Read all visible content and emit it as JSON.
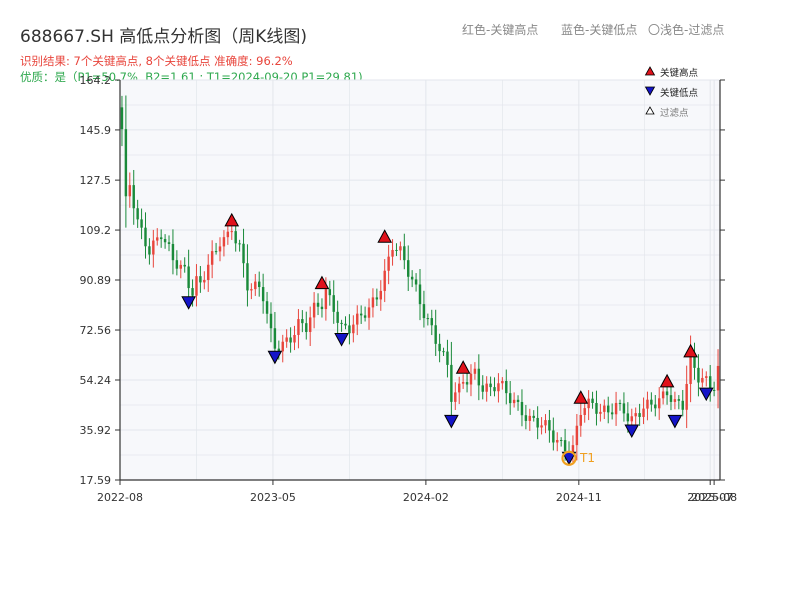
{
  "header": {
    "title": "688667.SH 高低点分析图（周K线图)",
    "legend_red": "红色-关键高点",
    "legend_blue": "蓝色-关键低点",
    "legend_light": "〇浅色-过滤点",
    "result_line": "识别结果: 7个关键高点, 8个关键低点  准确度: 96.2%",
    "quality_line": "优质：是（P1=50.7%, B2=1.61 ; T1=2024-09-20 P1=29.81)"
  },
  "colors": {
    "up": "#e8453c",
    "down": "#1a8a3a",
    "high_marker": "#e0121b",
    "low_marker": "#1414c8",
    "t1_ring": "#f0a020",
    "plot_bg": "#f7f8fb",
    "grid": "#e3e6ec"
  },
  "chart_data": {
    "type": "candlestick",
    "title": "688667.SH 高低点分析图（周K线图)",
    "x_tick_labels": [
      "2022-08",
      "2023-05",
      "2024-02",
      "2024-11",
      "2025-07",
      "2025-08"
    ],
    "x_tick_positions": [
      0,
      39,
      78,
      117,
      150.5,
      151.5
    ],
    "x_count": 153,
    "y_ticks": [
      17.59,
      35.92,
      54.24,
      72.56,
      90.89,
      109.2,
      127.5,
      145.9,
      164.2
    ],
    "ylim": [
      17.59,
      164.2
    ],
    "grid": true,
    "anchors": [
      [
        0,
        145
      ],
      [
        1,
        118
      ],
      [
        2,
        125
      ],
      [
        4,
        112
      ],
      [
        7,
        103
      ],
      [
        10,
        108
      ],
      [
        13,
        97
      ],
      [
        16,
        94
      ],
      [
        17,
        90
      ],
      [
        18,
        88
      ],
      [
        19,
        92
      ],
      [
        20,
        90
      ],
      [
        22,
        97
      ],
      [
        24,
        100
      ],
      [
        25,
        104
      ],
      [
        27,
        106
      ],
      [
        28,
        110
      ],
      [
        30,
        104
      ],
      [
        32,
        90
      ],
      [
        35,
        87
      ],
      [
        36,
        84
      ],
      [
        38,
        70
      ],
      [
        39,
        66
      ],
      [
        41,
        68
      ],
      [
        43,
        71
      ],
      [
        45,
        75
      ],
      [
        47,
        73
      ],
      [
        49,
        79
      ],
      [
        51,
        82
      ],
      [
        52,
        87
      ],
      [
        54,
        82
      ],
      [
        55,
        78
      ],
      [
        56,
        74
      ],
      [
        58,
        73
      ],
      [
        60,
        75
      ],
      [
        63,
        80
      ],
      [
        65,
        86
      ],
      [
        67,
        94
      ],
      [
        69,
        104
      ],
      [
        71,
        100
      ],
      [
        73,
        93
      ],
      [
        75,
        87
      ],
      [
        77,
        80
      ],
      [
        79,
        74
      ],
      [
        81,
        66
      ],
      [
        83,
        58
      ],
      [
        84,
        47
      ],
      [
        86,
        50
      ],
      [
        87,
        54
      ],
      [
        90,
        58
      ],
      [
        92,
        52
      ],
      [
        94,
        50
      ],
      [
        96,
        52
      ],
      [
        98,
        49
      ],
      [
        100,
        47
      ],
      [
        102,
        44
      ],
      [
        104,
        40
      ],
      [
        106,
        38
      ],
      [
        108,
        36
      ],
      [
        110,
        33
      ],
      [
        112,
        31
      ],
      [
        114,
        30
      ],
      [
        115,
        30
      ],
      [
        117,
        43
      ],
      [
        118,
        44
      ],
      [
        120,
        44
      ],
      [
        122,
        42
      ],
      [
        124,
        44
      ],
      [
        126,
        46
      ],
      [
        128,
        44
      ],
      [
        129,
        40
      ],
      [
        130,
        38
      ],
      [
        131,
        40
      ],
      [
        133,
        43
      ],
      [
        135,
        46
      ],
      [
        137,
        48
      ],
      [
        139,
        51
      ],
      [
        141,
        45
      ],
      [
        143,
        44
      ],
      [
        144,
        52
      ],
      [
        145,
        61
      ],
      [
        147,
        56
      ],
      [
        149,
        55
      ],
      [
        150,
        53
      ],
      [
        151,
        53
      ],
      [
        152,
        58
      ]
    ],
    "key_highs": [
      {
        "i": 28,
        "v": 110.0
      },
      {
        "i": 67,
        "v": 104.0
      },
      {
        "i": 51,
        "v": 87.0
      },
      {
        "i": 87,
        "v": 56.0
      },
      {
        "i": 117,
        "v": 45.0
      },
      {
        "i": 139,
        "v": 51.0
      },
      {
        "i": 145,
        "v": 62.0
      }
    ],
    "key_lows": [
      {
        "i": 17,
        "v": 85.5
      },
      {
        "i": 39,
        "v": 65.5
      },
      {
        "i": 56,
        "v": 72.0
      },
      {
        "i": 84,
        "v": 42.0
      },
      {
        "i": 114,
        "v": 28.5
      },
      {
        "i": 130,
        "v": 38.5
      },
      {
        "i": 141,
        "v": 42.0
      },
      {
        "i": 149,
        "v": 52.0
      }
    ],
    "t1": {
      "i": 114,
      "v": 28.5,
      "label": "T1"
    },
    "legend": [
      "关键高点",
      "关键低点",
      "过滤点"
    ]
  }
}
